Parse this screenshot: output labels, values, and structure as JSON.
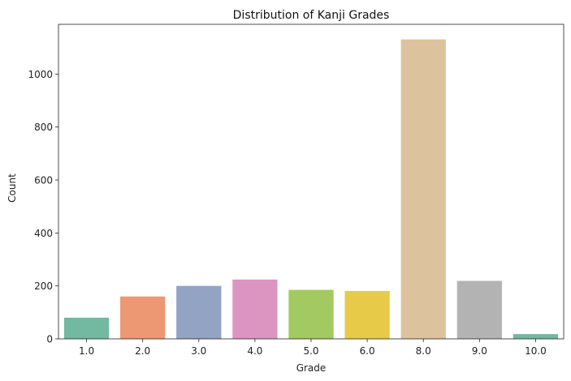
{
  "chart_data": {
    "type": "bar",
    "title": "Distribution of Kanji Grades",
    "xlabel": "Grade",
    "ylabel": "Count",
    "categories": [
      "1.0",
      "2.0",
      "3.0",
      "4.0",
      "5.0",
      "6.0",
      "8.0",
      "9.0",
      "10.0"
    ],
    "values": [
      80,
      160,
      200,
      224,
      185,
      181,
      1131,
      219,
      18
    ],
    "ylim": [
      0,
      1188
    ],
    "yticks": [
      0,
      200,
      400,
      600,
      800,
      1000
    ],
    "colors": [
      "#73b8a0",
      "#ed9872",
      "#93a3c4",
      "#dc94c1",
      "#a3c961",
      "#e7cb48",
      "#dcc39d",
      "#b3b3b3",
      "#73b8a0"
    ],
    "grid": false,
    "legend": "none"
  }
}
